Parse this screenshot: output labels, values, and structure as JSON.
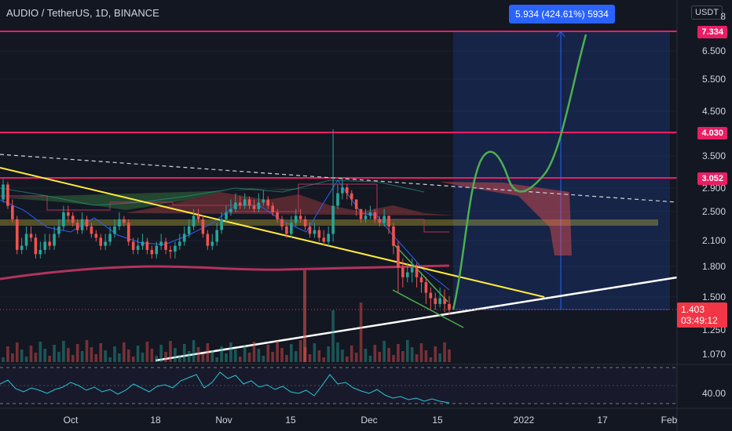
{
  "header": {
    "symbol_title": "AUDIO / TetherUS, 1D, BINANCE",
    "currency_button": "USDT"
  },
  "measure_tool": {
    "label": "5.934 (424.61%) 5934"
  },
  "price_axis": {
    "ticks": [
      "8",
      "6.500",
      "5.500",
      "4.500",
      "3.500",
      "2.900",
      "2.500",
      "2.100",
      "1.800",
      "1.500",
      "1.250",
      "1.070"
    ]
  },
  "rsi_axis": {
    "tick": "40.00"
  },
  "level_badges": {
    "r1": "7.334",
    "r2": "4.030",
    "r3": "3.052"
  },
  "last_price": {
    "price": "1.403",
    "countdown": "03:49:12"
  },
  "time_axis": {
    "ticks": [
      "Oct",
      "18",
      "Nov",
      "15",
      "Dec",
      "15",
      "2022",
      "17",
      "Feb"
    ]
  },
  "colors": {
    "background": "#131722",
    "up": "#26a69a",
    "down": "#ef5350",
    "level_line": "#e91e63",
    "measure": "#2962ff",
    "forecast": "#4caf50",
    "trendline_down": "#ffeb3b",
    "trendline_up": "#ffffff"
  },
  "chart_data": {
    "type": "candlestick",
    "y_scale": "log",
    "ylim": [
      1.0,
      8.0
    ],
    "candles": {
      "o": [
        2.7,
        2.95,
        2.6,
        2.4,
        2.0,
        2.05,
        2.2,
        2.15,
        1.95,
        2.0,
        2.1,
        2.05,
        2.2,
        2.3,
        2.5,
        2.45,
        2.35,
        2.25,
        2.4,
        2.3,
        2.2,
        2.15,
        2.05,
        2.1,
        2.2,
        2.3,
        2.4,
        2.35,
        2.1,
        2.0,
        2.05,
        2.1,
        2.0,
        1.95,
        2.05,
        2.1,
        2.0,
        1.98,
        2.05,
        2.1,
        2.2,
        2.3,
        2.45,
        2.4,
        2.2,
        2.05,
        2.1,
        2.25,
        2.4,
        2.5,
        2.55,
        2.65,
        2.6,
        2.7,
        2.6,
        2.55,
        2.65,
        2.7,
        2.6,
        2.5,
        2.4,
        2.3,
        2.2,
        2.35,
        2.45,
        2.4,
        2.3,
        2.2,
        2.25,
        2.15,
        2.1,
        2.2,
        2.6,
        2.8,
        2.9,
        2.8,
        2.7,
        2.55,
        2.4,
        2.45,
        2.5,
        2.4,
        2.35,
        2.45,
        2.3,
        2.05,
        1.8,
        1.7,
        1.75,
        1.8,
        1.7,
        1.65,
        1.55,
        1.5,
        1.45,
        1.5,
        1.45
      ],
      "c": [
        2.95,
        2.6,
        2.4,
        2.0,
        2.05,
        2.2,
        2.15,
        1.95,
        2.0,
        2.1,
        2.05,
        2.2,
        2.3,
        2.5,
        2.45,
        2.35,
        2.25,
        2.4,
        2.3,
        2.2,
        2.15,
        2.05,
        2.1,
        2.2,
        2.3,
        2.4,
        2.35,
        2.1,
        2.0,
        2.05,
        2.1,
        2.0,
        1.95,
        2.05,
        2.1,
        2.0,
        1.98,
        2.05,
        2.1,
        2.2,
        2.3,
        2.45,
        2.4,
        2.2,
        2.05,
        2.1,
        2.25,
        2.4,
        2.5,
        2.55,
        2.65,
        2.6,
        2.7,
        2.6,
        2.55,
        2.65,
        2.7,
        2.6,
        2.5,
        2.4,
        2.3,
        2.2,
        2.35,
        2.45,
        2.4,
        2.3,
        2.2,
        2.25,
        2.15,
        2.1,
        2.2,
        2.6,
        2.8,
        2.9,
        2.8,
        2.7,
        2.55,
        2.4,
        2.45,
        2.5,
        2.4,
        2.35,
        2.45,
        2.3,
        2.05,
        1.8,
        1.7,
        1.75,
        1.8,
        1.7,
        1.65,
        1.55,
        1.5,
        1.45,
        1.5,
        1.45,
        1.4
      ],
      "h": [
        3.05,
        3.0,
        2.7,
        2.45,
        2.15,
        2.3,
        2.3,
        2.2,
        2.1,
        2.2,
        2.2,
        2.3,
        2.4,
        2.6,
        2.6,
        2.5,
        2.4,
        2.5,
        2.45,
        2.35,
        2.25,
        2.2,
        2.2,
        2.3,
        2.4,
        2.5,
        2.45,
        2.4,
        2.15,
        2.15,
        2.2,
        2.15,
        2.05,
        2.1,
        2.2,
        2.15,
        2.05,
        2.1,
        2.2,
        2.3,
        2.4,
        2.55,
        2.55,
        2.45,
        2.25,
        2.2,
        2.35,
        2.5,
        2.6,
        2.7,
        2.8,
        2.75,
        2.8,
        2.75,
        2.7,
        2.8,
        2.85,
        2.75,
        2.65,
        2.55,
        2.45,
        2.35,
        2.45,
        2.55,
        2.55,
        2.45,
        2.35,
        2.35,
        2.3,
        2.25,
        2.3,
        4.1,
        2.95,
        3.05,
        2.95,
        2.85,
        2.7,
        2.55,
        2.55,
        2.6,
        2.55,
        2.45,
        2.55,
        2.45,
        2.35,
        2.1,
        1.9,
        1.85,
        1.9,
        1.85,
        1.75,
        1.7,
        1.6,
        1.55,
        1.6,
        1.58,
        1.52
      ],
      "l": [
        2.65,
        2.55,
        2.35,
        1.95,
        1.95,
        2.0,
        2.1,
        1.9,
        1.9,
        1.95,
        2.0,
        2.0,
        2.15,
        2.25,
        2.35,
        2.3,
        2.2,
        2.2,
        2.25,
        2.15,
        2.1,
        2.0,
        2.0,
        2.05,
        2.15,
        2.25,
        2.3,
        2.05,
        1.95,
        1.95,
        2.0,
        1.95,
        1.9,
        1.9,
        2.0,
        1.95,
        1.9,
        1.9,
        2.0,
        2.05,
        2.15,
        2.25,
        2.35,
        2.15,
        2.0,
        2.0,
        2.05,
        2.2,
        2.35,
        2.45,
        2.5,
        2.55,
        2.55,
        2.55,
        2.5,
        2.5,
        2.6,
        2.55,
        2.45,
        2.35,
        2.25,
        2.15,
        2.15,
        2.3,
        2.35,
        2.25,
        2.15,
        2.15,
        2.1,
        2.05,
        2.05,
        2.1,
        2.55,
        2.7,
        2.7,
        2.6,
        2.45,
        2.35,
        2.35,
        2.4,
        2.35,
        2.3,
        2.3,
        2.2,
        1.95,
        1.55,
        1.6,
        1.65,
        1.65,
        1.6,
        1.55,
        1.45,
        1.4,
        1.4,
        1.42,
        1.38,
        1.36
      ]
    },
    "levels": [
      7.334,
      4.03,
      3.052
    ],
    "measure_from": 1.403,
    "measure_to": 7.334
  }
}
